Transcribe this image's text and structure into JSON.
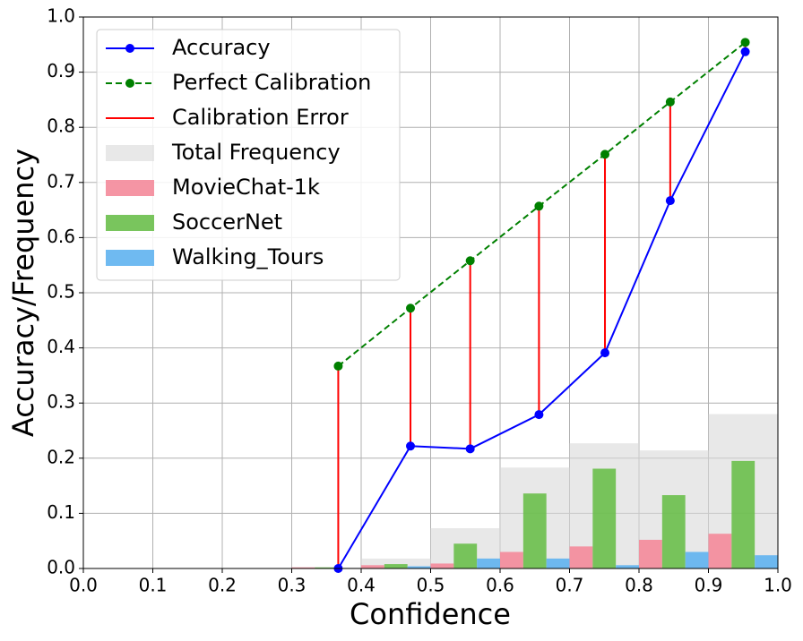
{
  "chart_data": {
    "type": "calibration",
    "xlabel": "Confidence",
    "ylabel": "Accuracy/Frequency",
    "xlim": [
      0,
      1
    ],
    "ylim": [
      0,
      1
    ],
    "xticks": [
      {
        "value": 0,
        "label": "0.0"
      },
      0.1,
      0.2,
      0.3,
      0.4,
      0.5,
      0.6,
      0.7,
      0.8,
      0.9,
      {
        "value": 1,
        "label": "1.0"
      }
    ],
    "yticks": [
      {
        "value": 0,
        "label": "0.0"
      },
      0.1,
      0.2,
      0.3,
      0.4,
      0.5,
      0.6,
      0.7,
      0.8,
      0.9,
      {
        "value": 1,
        "label": "1.0"
      }
    ],
    "grid": true,
    "legend": "upper left",
    "lines": [
      {
        "name": "Accuracy",
        "color": "#0000ff",
        "style": "solid",
        "x": [
          0.367,
          0.471,
          0.557,
          0.656,
          0.751,
          0.845,
          0.953
        ],
        "values": [
          0.0,
          0.222,
          0.217,
          0.279,
          0.391,
          0.667,
          0.937
        ]
      },
      {
        "name": "Perfect Calibration",
        "color": "#008000",
        "style": "dashed",
        "x": [
          0.367,
          0.471,
          0.557,
          0.656,
          0.751,
          0.845,
          0.953
        ],
        "values": [
          0.367,
          0.472,
          0.558,
          0.657,
          0.751,
          0.846,
          0.954
        ]
      }
    ],
    "error": {
      "name": "Calibration Error",
      "color": "#ff0000"
    },
    "bins": [
      0,
      0.1,
      0.2,
      0.3,
      0.4,
      0.5,
      0.6,
      0.7,
      0.8,
      0.9,
      1
    ],
    "hist": [
      {
        "name": "Total Frequency",
        "color": "#d9d9d9",
        "values": [
          0,
          0,
          0,
          0.002,
          0.018,
          0.073,
          0.183,
          0.227,
          0.214,
          0.28
        ]
      },
      {
        "name": "MovieChat-1k",
        "color": "#f48a9a",
        "values": [
          0,
          0,
          0,
          0.002,
          0.006,
          0.009,
          0.03,
          0.04,
          0.052,
          0.063
        ]
      },
      {
        "name": "SoccerNet",
        "color": "#6abf4b",
        "values": [
          0,
          0,
          0,
          0.002,
          0.008,
          0.045,
          0.136,
          0.181,
          0.133,
          0.195
        ]
      },
      {
        "name": "Walking_Tours",
        "color": "#5fb3f0",
        "values": [
          0,
          0,
          0,
          0,
          0.004,
          0.018,
          0.018,
          0.006,
          0.03,
          0.024
        ]
      }
    ]
  }
}
